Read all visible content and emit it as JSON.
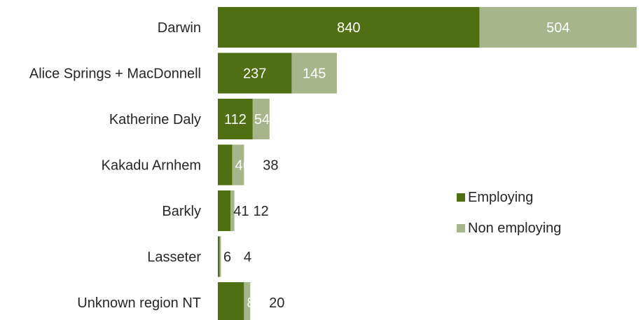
{
  "chart_data": {
    "type": "bar",
    "orientation": "horizontal",
    "stacked": true,
    "categories": [
      "Darwin",
      "Alice Springs + MacDonnell",
      "Katherine Daly",
      "Kakadu Arnhem",
      "Barkly",
      "Lasseter",
      "Unknown region NT"
    ],
    "series": [
      {
        "name": "Employing",
        "values": [
          840,
          237,
          112,
          46,
          41,
          6,
          84
        ],
        "color": "#4f6f12"
      },
      {
        "name": "Non employing",
        "values": [
          504,
          145,
          54,
          38,
          12,
          4,
          20
        ],
        "color": "#a6b68a"
      }
    ],
    "legend_position": "right",
    "grid": false,
    "xlim": [
      0,
      1360
    ]
  }
}
